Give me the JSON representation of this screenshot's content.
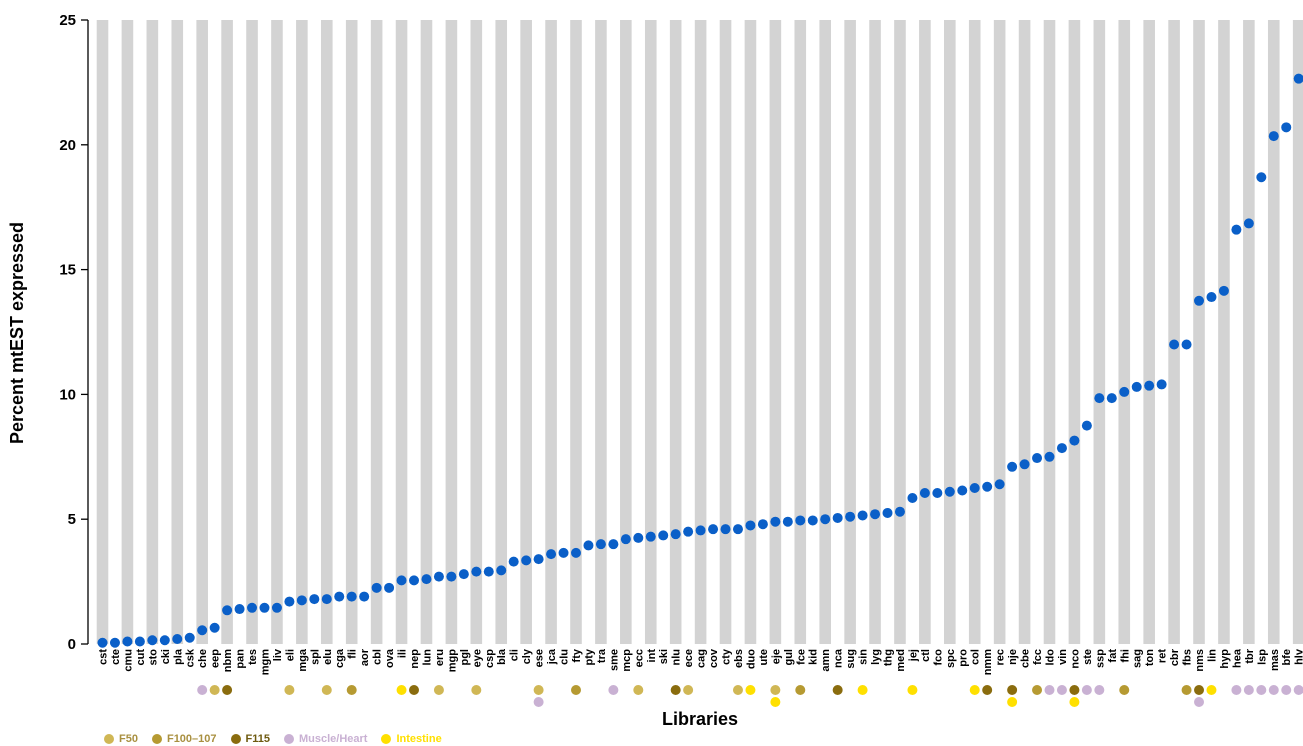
{
  "chart_data": {
    "type": "scatter",
    "xlabel": "Libraries",
    "ylabel": "Percent mtEST expressed",
    "ylim": [
      0,
      25
    ],
    "yticks": [
      0,
      5,
      10,
      15,
      20,
      25
    ],
    "marker_color": "#0a5fc8",
    "band_color": "#d3d3d3",
    "categories": [
      "cst",
      "cte",
      "cmu",
      "cut",
      "sto",
      "cki",
      "pla",
      "csk",
      "che",
      "eep",
      "nbm",
      "pan",
      "tes",
      "mgm",
      "liv",
      "eli",
      "mga",
      "spl",
      "elu",
      "cga",
      "fli",
      "aor",
      "cbl",
      "ova",
      "ili",
      "nep",
      "lun",
      "eru",
      "mgp",
      "pgl",
      "eye",
      "csp",
      "bla",
      "cli",
      "cly",
      "ese",
      "jca",
      "clu",
      "fty",
      "pty",
      "tra",
      "sme",
      "mcp",
      "ecc",
      "int",
      "ski",
      "nlu",
      "ece",
      "cag",
      "cov",
      "cty",
      "ebs",
      "duo",
      "ute",
      "eje",
      "gul",
      "fce",
      "kid",
      "amn",
      "nca",
      "sug",
      "sin",
      "lyg",
      "thg",
      "med",
      "jej",
      "ctl",
      "fco",
      "spc",
      "pro",
      "col",
      "nmm",
      "rec",
      "nje",
      "cbe",
      "fcc",
      "ldo",
      "vin",
      "nco",
      "ste",
      "ssp",
      "fat",
      "fhi",
      "sag",
      "ton",
      "ret",
      "cbr",
      "fbs",
      "nms",
      "lin",
      "hyp",
      "hea",
      "tbr",
      "lsp",
      "mas",
      "bfe",
      "hlv"
    ],
    "values": [
      0.05,
      0.05,
      0.1,
      0.1,
      0.15,
      0.15,
      0.2,
      0.25,
      0.55,
      0.65,
      1.35,
      1.4,
      1.45,
      1.45,
      1.45,
      1.7,
      1.75,
      1.8,
      1.8,
      1.9,
      1.9,
      1.9,
      2.25,
      2.25,
      2.55,
      2.55,
      2.6,
      2.7,
      2.7,
      2.8,
      2.9,
      2.9,
      2.95,
      3.3,
      3.35,
      3.4,
      3.6,
      3.65,
      3.65,
      3.95,
      4.0,
      4.0,
      4.2,
      4.25,
      4.3,
      4.35,
      4.4,
      4.5,
      4.55,
      4.6,
      4.6,
      4.6,
      4.75,
      4.8,
      4.9,
      4.9,
      4.95,
      4.95,
      5.0,
      5.05,
      5.1,
      5.15,
      5.2,
      5.25,
      5.3,
      5.85,
      6.05,
      6.05,
      6.1,
      6.15,
      6.25,
      6.3,
      6.4,
      7.1,
      7.2,
      7.45,
      7.5,
      7.85,
      8.15,
      8.75,
      9.85,
      9.85,
      10.1,
      10.3,
      10.35,
      10.4,
      12.0,
      12.0,
      13.75,
      13.9,
      14.15,
      16.6,
      16.85,
      18.7,
      20.35,
      20.7,
      22.65
    ],
    "groups": [
      {
        "name": "F50",
        "color": "#d0b755"
      },
      {
        "name": "F100–107",
        "color": "#b69a32"
      },
      {
        "name": "F115",
        "color": "#8a6c0e"
      },
      {
        "name": "Muscle/Heart",
        "color": "#c9b1d3"
      },
      {
        "name": "Intestine",
        "color": "#ffe000"
      }
    ],
    "annotations": [
      {
        "category": "che",
        "groups": [
          "Muscle/Heart"
        ]
      },
      {
        "category": "eep",
        "groups": [
          "F50"
        ]
      },
      {
        "category": "nbm",
        "groups": [
          "F115"
        ]
      },
      {
        "category": "eli",
        "groups": [
          "F50"
        ]
      },
      {
        "category": "elu",
        "groups": [
          "F50"
        ]
      },
      {
        "category": "fli",
        "groups": [
          "F100–107"
        ]
      },
      {
        "category": "ili",
        "groups": [
          "Intestine"
        ]
      },
      {
        "category": "nep",
        "groups": [
          "F115"
        ]
      },
      {
        "category": "eru",
        "groups": [
          "F50"
        ]
      },
      {
        "category": "eye",
        "groups": [
          "F50"
        ]
      },
      {
        "category": "ese",
        "groups": [
          "F50",
          "Muscle/Heart"
        ]
      },
      {
        "category": "fty",
        "groups": [
          "F100–107"
        ]
      },
      {
        "category": "sme",
        "groups": [
          "Muscle/Heart"
        ]
      },
      {
        "category": "ecc",
        "groups": [
          "F50"
        ]
      },
      {
        "category": "nlu",
        "groups": [
          "F115"
        ]
      },
      {
        "category": "ece",
        "groups": [
          "F50"
        ]
      },
      {
        "category": "ebs",
        "groups": [
          "F50"
        ]
      },
      {
        "category": "duo",
        "groups": [
          "Intestine"
        ]
      },
      {
        "category": "eje",
        "groups": [
          "F50",
          "Intestine"
        ]
      },
      {
        "category": "fce",
        "groups": [
          "F100–107"
        ]
      },
      {
        "category": "nca",
        "groups": [
          "F115"
        ]
      },
      {
        "category": "sin",
        "groups": [
          "Intestine"
        ]
      },
      {
        "category": "jej",
        "groups": [
          "Intestine"
        ]
      },
      {
        "category": "col",
        "groups": [
          "Intestine"
        ]
      },
      {
        "category": "nmm",
        "groups": [
          "F115"
        ]
      },
      {
        "category": "nje",
        "groups": [
          "F115",
          "Intestine"
        ]
      },
      {
        "category": "fcc",
        "groups": [
          "F100–107"
        ]
      },
      {
        "category": "ldo",
        "groups": [
          "Muscle/Heart"
        ]
      },
      {
        "category": "vin",
        "groups": [
          "Muscle/Heart"
        ]
      },
      {
        "category": "nco",
        "groups": [
          "F115",
          "Intestine"
        ]
      },
      {
        "category": "ste",
        "groups": [
          "Muscle/Heart"
        ]
      },
      {
        "category": "ssp",
        "groups": [
          "Muscle/Heart"
        ]
      },
      {
        "category": "fhi",
        "groups": [
          "F100–107"
        ]
      },
      {
        "category": "fbs",
        "groups": [
          "F100–107"
        ]
      },
      {
        "category": "nms",
        "groups": [
          "F115",
          "Muscle/Heart"
        ]
      },
      {
        "category": "lin",
        "groups": [
          "Intestine"
        ]
      },
      {
        "category": "hea",
        "groups": [
          "Muscle/Heart"
        ]
      },
      {
        "category": "tbr",
        "groups": [
          "Muscle/Heart"
        ]
      },
      {
        "category": "lsp",
        "groups": [
          "Muscle/Heart"
        ]
      },
      {
        "category": "mas",
        "groups": [
          "Muscle/Heart"
        ]
      },
      {
        "category": "bfe",
        "groups": [
          "Muscle/Heart"
        ]
      },
      {
        "category": "hlv",
        "groups": [
          "Muscle/Heart"
        ]
      }
    ]
  }
}
